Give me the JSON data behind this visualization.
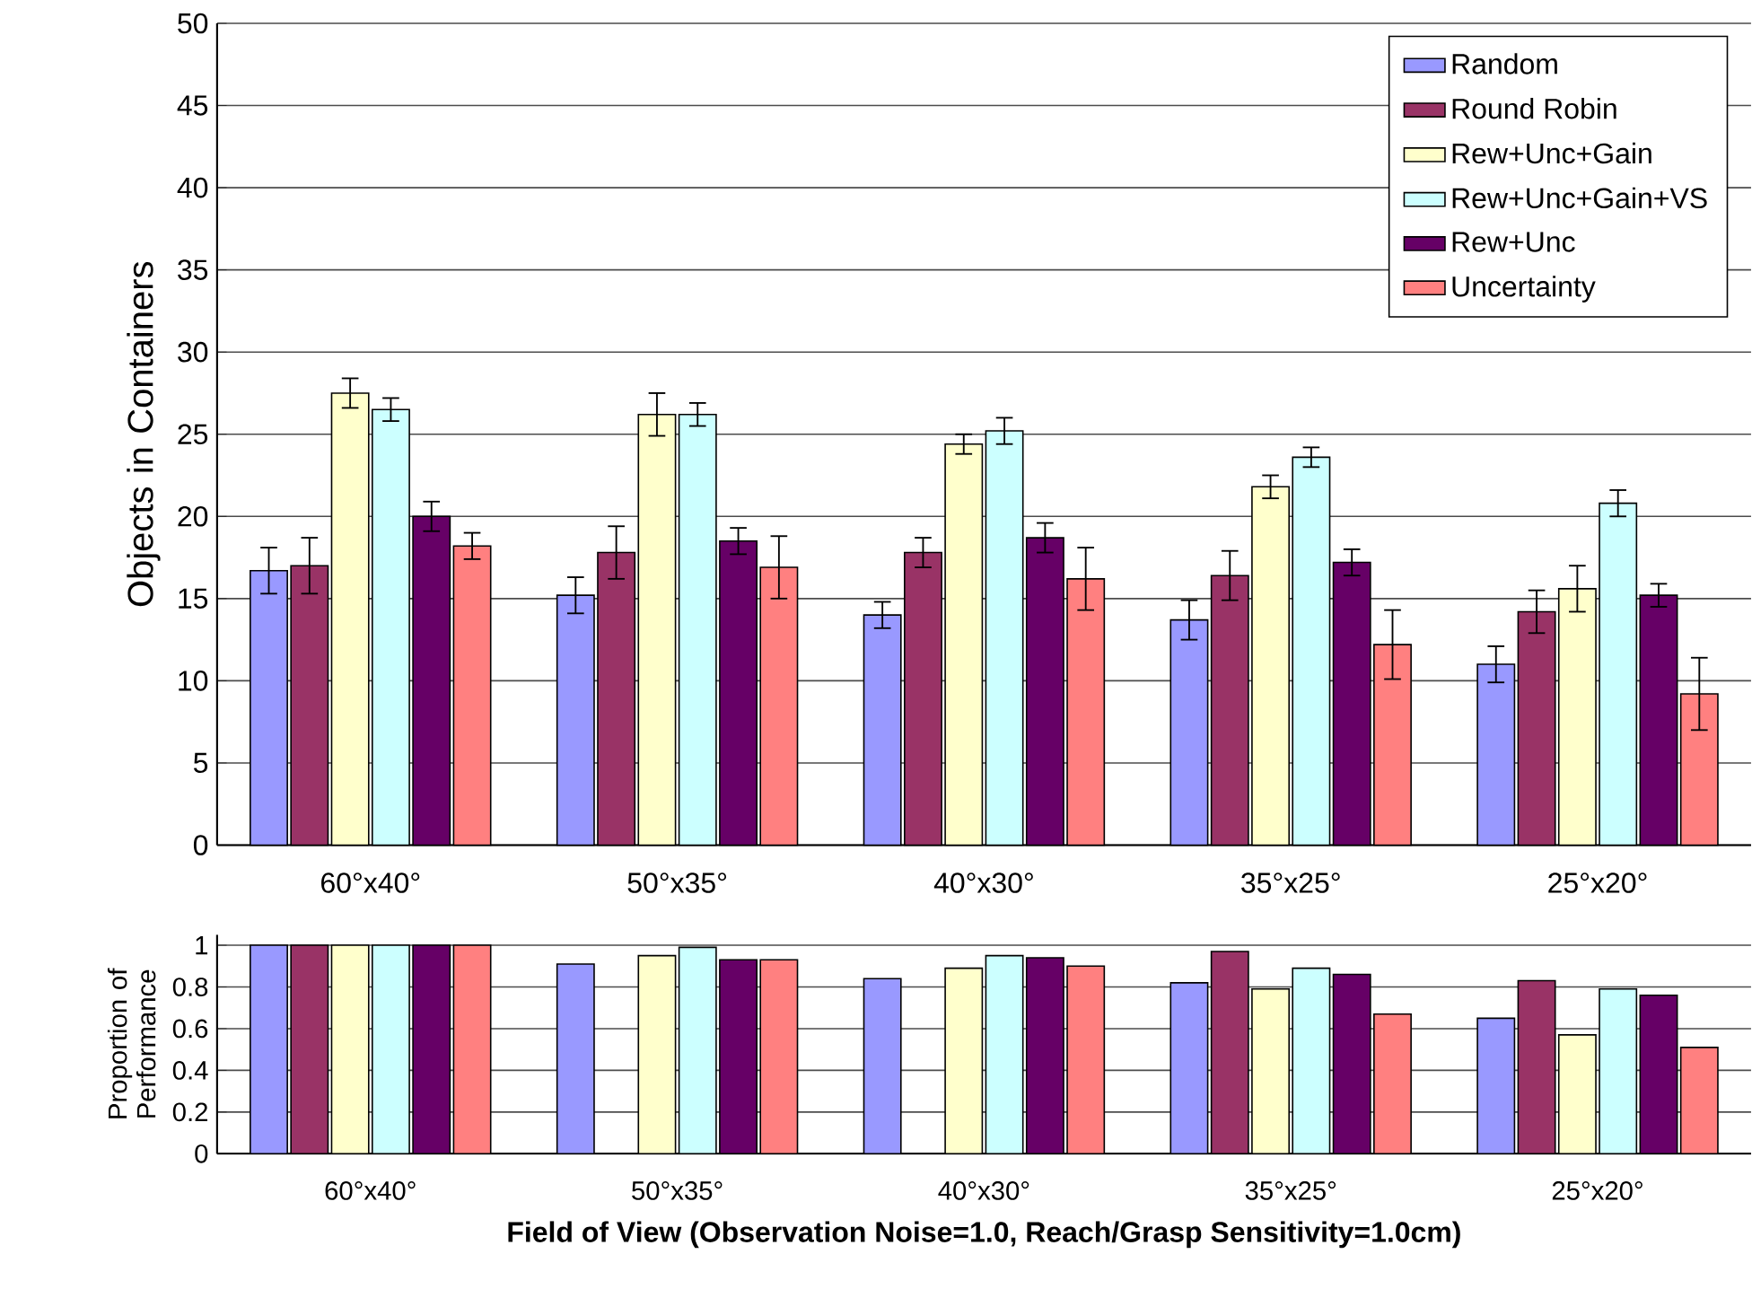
{
  "chart_data": [
    {
      "type": "bar",
      "ylabel": "Objects in Containers",
      "categories": [
        "60°x40°",
        "50°x35°",
        "40°x30°",
        "35°x25°",
        "25°x20°"
      ],
      "series": [
        {
          "name": "Random",
          "color": "#9999ff",
          "values": [
            16.7,
            15.2,
            14.0,
            13.7,
            11.0
          ],
          "errors": [
            1.4,
            1.1,
            0.8,
            1.2,
            1.1
          ]
        },
        {
          "name": "Round Robin",
          "color": "#993366",
          "values": [
            17.0,
            17.8,
            17.8,
            16.4,
            14.2
          ],
          "errors": [
            1.7,
            1.6,
            0.9,
            1.5,
            1.3
          ]
        },
        {
          "name": "Rew+Unc+Gain",
          "color": "#ffffcc",
          "values": [
            27.5,
            26.2,
            24.4,
            21.8,
            15.6
          ],
          "errors": [
            0.9,
            1.3,
            0.6,
            0.7,
            1.4
          ]
        },
        {
          "name": "Rew+Unc+Gain+VS",
          "color": "#ccffff",
          "values": [
            26.5,
            26.2,
            25.2,
            23.6,
            20.8
          ],
          "errors": [
            0.7,
            0.7,
            0.8,
            0.6,
            0.8
          ]
        },
        {
          "name": "Rew+Unc",
          "color": "#660066",
          "values": [
            20.0,
            18.5,
            18.7,
            17.2,
            15.2
          ],
          "errors": [
            0.9,
            0.8,
            0.9,
            0.8,
            0.7
          ]
        },
        {
          "name": "Uncertainty",
          "color": "#ff8080",
          "values": [
            18.2,
            16.9,
            16.2,
            12.2,
            9.2
          ],
          "errors": [
            0.8,
            1.9,
            1.9,
            2.1,
            2.2
          ]
        }
      ],
      "ylim": [
        0,
        50
      ],
      "yticks": [
        0,
        5,
        10,
        15,
        20,
        25,
        30,
        35,
        40,
        45,
        50
      ],
      "grid": "y",
      "legend": "top right"
    },
    {
      "type": "bar",
      "ylabel": "Proportion of Performance",
      "xlabel": "Field of View (Observation Noise=1.0, Reach/Grasp Sensitivity=1.0cm)",
      "categories": [
        "60°x40°",
        "50°x35°",
        "40°x30°",
        "35°x25°",
        "25°x20°"
      ],
      "series": [
        {
          "color": "#9999ff",
          "values": [
            1.0,
            0.91,
            0.84,
            0.82,
            0.65
          ]
        },
        {
          "color": "#993366",
          "values": [
            1.0,
            null,
            null,
            0.97,
            0.83
          ]
        },
        {
          "color": "#ffffcc",
          "values": [
            1.0,
            0.95,
            0.89,
            0.79,
            0.57
          ]
        },
        {
          "color": "#ccffff",
          "values": [
            1.0,
            0.99,
            0.95,
            0.89,
            0.79
          ]
        },
        {
          "color": "#660066",
          "values": [
            1.0,
            0.93,
            0.94,
            0.86,
            0.76
          ]
        },
        {
          "color": "#ff8080",
          "values": [
            1.0,
            0.93,
            0.9,
            0.67,
            0.51
          ]
        }
      ],
      "ylim": [
        0,
        1.05
      ],
      "yticks": [
        0,
        0.2,
        0.4,
        0.6,
        0.8,
        1
      ],
      "grid": "y"
    }
  ]
}
